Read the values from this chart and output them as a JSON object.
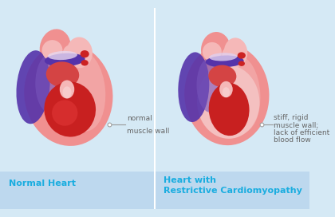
{
  "bg_color": "#d5e9f5",
  "label_bar_color": "#bdd8ee",
  "divider_color": "#ffffff",
  "label_color": "#1aade0",
  "annotation_color": "#666666",
  "line_color": "#999999",
  "label1": "Normal Heart",
  "label2_line1": "Heart with",
  "label2_line2": "Restrictive Cardiomyopathy",
  "annot1_line1": "normal",
  "annot1_line2": "muscle wall",
  "annot2_line1": "stiff, rigid",
  "annot2_line2": "muscle wall;",
  "annot2_line3": "lack of efficient",
  "annot2_line4": "blood flow",
  "outer_pink": "#f09090",
  "outer_pink_light": "#f5b8b8",
  "outer_pink_highlight": "#f8d0d0",
  "inner_red": "#c82020",
  "inner_red2": "#dd3333",
  "pink_wall": "#f0a0a0",
  "pink_wall_thick": "#f4c0c0",
  "purple_dark": "#5533aa",
  "purple_mid": "#7755bb",
  "purple_light": "#9977cc",
  "red_vessel": "#cc2222",
  "aorta_pink": "#ee8888",
  "aorta_top_pink": "#f5a0a0",
  "white_highlight": "#ffffff",
  "septum_color": "#e8a0a0"
}
